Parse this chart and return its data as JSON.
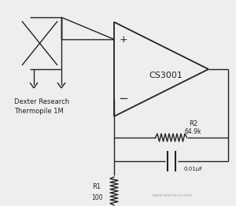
{
  "background_color": "#eeeeee",
  "line_color": "#222222",
  "text_color": "#222222",
  "op_amp_label": "CS3001",
  "sensor_label1": "Dexter Research",
  "sensor_label2": "Thermopile 1M",
  "r1_label": "R1",
  "r1_value": "100",
  "r2_label": "R2",
  "r2_value": "64.9k",
  "c1_value": "0.01μF",
  "plus_label": "+",
  "minus_label": "−",
  "watermark": "www.elecfans.com"
}
